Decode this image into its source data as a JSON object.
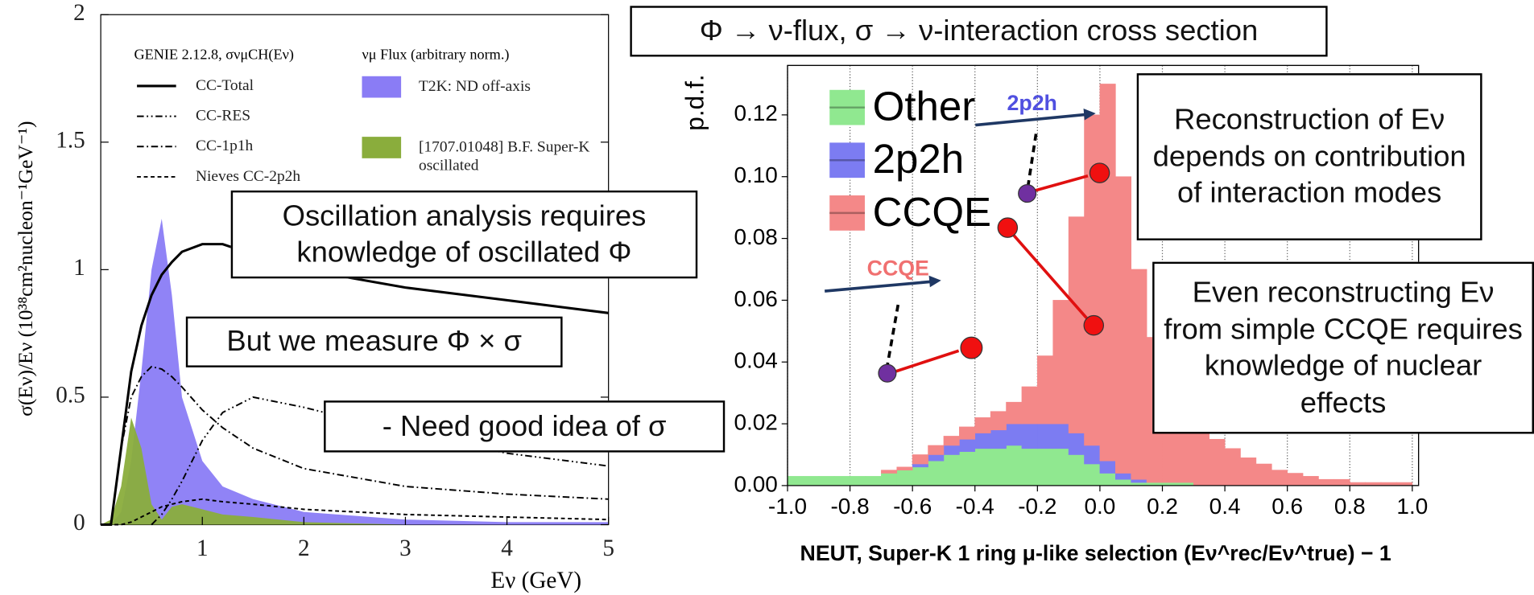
{
  "chart_data": [
    {
      "type": "line",
      "title": "GENIE 2.12.8, σνμCH(Eν)",
      "legend_title": "νμ Flux (arbitrary norm.)",
      "x_label": "Eν (GeV)",
      "y_label": "σ(Eν)/Eν (10³⁸cm²nucleon⁻¹GeV⁻¹)",
      "xlim": [
        0,
        5
      ],
      "ylim": [
        0,
        2
      ],
      "xticks": [
        1,
        2,
        3,
        4,
        5
      ],
      "yticks": [
        0,
        0.5,
        1,
        1.5,
        2
      ],
      "x": [
        0,
        0.1,
        0.2,
        0.3,
        0.4,
        0.5,
        0.6,
        0.7,
        0.8,
        1,
        1.2,
        1.5,
        2,
        3,
        4,
        5
      ],
      "series": [
        {
          "name": "T2K: ND off-axis",
          "kind": "area",
          "color": "#8a7cf5",
          "values": [
            0,
            0,
            0.05,
            0.25,
            0.6,
            1.0,
            1.2,
            0.9,
            0.5,
            0.25,
            0.15,
            0.1,
            0.05,
            0.02,
            0.01,
            0.01
          ]
        },
        {
          "name": "[1707.01048] B.F. Super-K oscillated",
          "kind": "area",
          "color": "#8aad3c",
          "values": [
            0,
            0.02,
            0.15,
            0.42,
            0.3,
            0.08,
            0.02,
            0.07,
            0.08,
            0.06,
            0.04,
            0.03,
            0.01,
            0,
            0,
            0
          ]
        },
        {
          "name": "CC-Total",
          "kind": "line",
          "dash": "solid",
          "color": "#000000",
          "values": [
            0,
            0,
            0.3,
            0.6,
            0.78,
            0.9,
            0.98,
            1.03,
            1.07,
            1.1,
            1.1,
            1.06,
            1.0,
            0.93,
            0.88,
            0.83
          ]
        },
        {
          "name": "CC-RES",
          "kind": "line",
          "dash": "dash-dot-dot",
          "color": "#000000",
          "values": [
            null,
            null,
            null,
            null,
            null,
            0,
            0.04,
            0.1,
            0.17,
            0.33,
            0.44,
            0.5,
            0.46,
            0.36,
            0.28,
            0.23
          ]
        },
        {
          "name": "CC-1p1h",
          "kind": "line",
          "dash": "dash-dot",
          "color": "#000000",
          "values": [
            0,
            0,
            0.3,
            0.5,
            0.58,
            0.62,
            0.61,
            0.58,
            0.54,
            0.45,
            0.38,
            0.3,
            0.22,
            0.15,
            0.12,
            0.1
          ]
        },
        {
          "name": "Nieves CC-2p2h",
          "kind": "line",
          "dash": "dashed",
          "color": "#000000",
          "values": [
            0,
            0,
            0,
            0.01,
            0.03,
            0.05,
            0.07,
            0.08,
            0.09,
            0.1,
            0.09,
            0.08,
            0.06,
            0.04,
            0.03,
            0.02
          ]
        }
      ]
    },
    {
      "type": "histogram",
      "stacked": true,
      "grid": "x",
      "x_label": "NEUT, Super-K 1 ring μ-like selection (Eν^rec/Eν^true) − 1",
      "y_label": "p.d.f.",
      "xlim": [
        -1.0,
        1.02
      ],
      "ylim": [
        0,
        0.136
      ],
      "xticks": [
        {
          "value": -1,
          "label": "-1.0"
        },
        -0.8,
        -0.6,
        -0.4,
        -0.2,
        {
          "value": 0,
          "label": "0.0"
        },
        0.2,
        0.4,
        0.6,
        0.8,
        {
          "value": 1,
          "label": "1.0"
        }
      ],
      "yticks": [
        {
          "value": 0,
          "label": "0.00"
        },
        0.02,
        0.04,
        0.06,
        0.08,
        {
          "value": 0.1,
          "label": "0.10"
        },
        0.12
      ],
      "annotations": [
        "2p2h",
        "CCQE"
      ],
      "bins": [
        -1.0,
        -0.95,
        -0.9,
        -0.85,
        -0.8,
        -0.75,
        -0.7,
        -0.65,
        -0.6,
        -0.55,
        -0.5,
        -0.45,
        -0.4,
        -0.35,
        -0.3,
        -0.25,
        -0.2,
        -0.15,
        -0.1,
        -0.05,
        0,
        0.05,
        0.1,
        0.15,
        0.2,
        0.25,
        0.3,
        0.35,
        0.4,
        0.45,
        0.5,
        0.55,
        0.6,
        0.65,
        0.7,
        0.75,
        0.8,
        0.85,
        0.9,
        0.95,
        1.0
      ],
      "series": [
        {
          "name": "Other",
          "color": "#90e890",
          "values": [
            0.003,
            0.003,
            0.003,
            0.003,
            0.003,
            0.003,
            0.004,
            0.005,
            0.006,
            0.008,
            0.01,
            0.011,
            0.012,
            0.012,
            0.013,
            0.012,
            0.012,
            0.012,
            0.01,
            0.007,
            0.004,
            0.002,
            0.001,
            0.001,
            0.001,
            0.001,
            0,
            0,
            0,
            0,
            0,
            0,
            0,
            0,
            0,
            0,
            0,
            0,
            0,
            0
          ]
        },
        {
          "name": "2p2h",
          "color": "#7c7cf2",
          "values": [
            0,
            0,
            0,
            0,
            0,
            0,
            0,
            0,
            0.001,
            0.002,
            0.003,
            0.004,
            0.005,
            0.006,
            0.007,
            0.008,
            0.008,
            0.008,
            0.007,
            0.006,
            0.004,
            0.002,
            0.001,
            0,
            0,
            0,
            0,
            0,
            0,
            0,
            0,
            0,
            0,
            0,
            0,
            0,
            0,
            0,
            0,
            0
          ]
        },
        {
          "name": "CCQE",
          "color": "#f48888",
          "values": [
            0,
            0,
            0,
            0,
            0,
            0,
            0.001,
            0.001,
            0.003,
            0.003,
            0.003,
            0.004,
            0.005,
            0.006,
            0.007,
            0.012,
            0.022,
            0.04,
            0.07,
            0.107,
            0.122,
            0.096,
            0.068,
            0.047,
            0.034,
            0.026,
            0.02,
            0.015,
            0.012,
            0.009,
            0.007,
            0.005,
            0.004,
            0.003,
            0.002,
            0.002,
            0.001,
            0.001,
            0.001,
            0.001
          ]
        }
      ]
    }
  ],
  "callouts": [
    "Φ → ν-flux, σ → ν-interaction cross section",
    "Reconstruction of Eν depends on contribution of interaction modes",
    "Even reconstructing Eν from simple CCQE requires knowledge of nuclear effects",
    "Oscillation analysis requires knowledge of oscillated Φ",
    "But we measure Φ × σ",
    "- Need good idea of σ"
  ]
}
